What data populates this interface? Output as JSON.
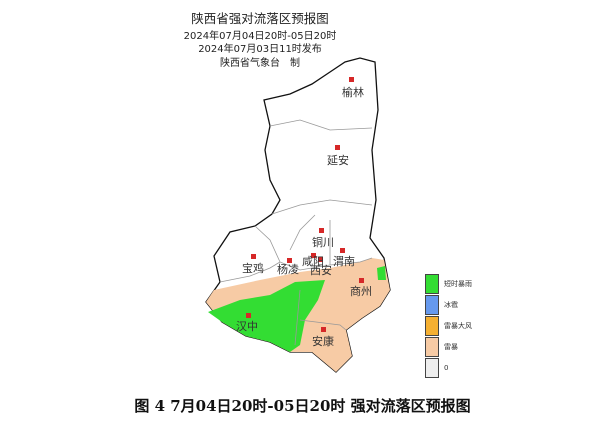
{
  "header": {
    "title": "陕西省强对流落区预报图",
    "valid_period": "2024年07月04日20时-05日20时",
    "issued": "2024年07月03日11时发布",
    "producer": "陕西省气象台　制"
  },
  "cities": [
    {
      "name": "榆林"
    },
    {
      "name": "延安"
    },
    {
      "name": "铜川"
    },
    {
      "name": "宝鸡"
    },
    {
      "name": "杨凌"
    },
    {
      "name": "咸阳"
    },
    {
      "name": "西安"
    },
    {
      "name": "渭南"
    },
    {
      "name": "商州"
    },
    {
      "name": "汉中"
    },
    {
      "name": "安康"
    }
  ],
  "legend": [
    {
      "label": "短时暴雨",
      "color": "#33dd33"
    },
    {
      "label": "冰雹",
      "color": "#6699ee"
    },
    {
      "label": "雷暴大风",
      "color": "#f5b032"
    },
    {
      "label": "雷暴",
      "color": "#f7cba5"
    },
    {
      "label": "0",
      "color": "#eeeeee"
    }
  ],
  "caption": "图 4 7月04日20时-05日20时  强对流落区预报图"
}
